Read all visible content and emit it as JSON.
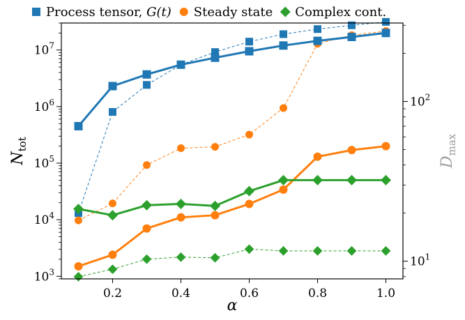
{
  "chart_data": {
    "type": "line",
    "x": [
      0.1,
      0.2,
      0.3,
      0.4,
      0.5,
      0.6,
      0.7,
      0.8,
      0.9,
      1.0
    ],
    "xlabel": "α",
    "ylabel": "N",
    "ylabel_sub": "tot",
    "ylabel_right": "D",
    "ylabel_right_sub": "max",
    "xlim": [
      0.05,
      1.05
    ],
    "ylim": [
      900,
      30000000
    ],
    "ylim_right": [
      7.75,
      310
    ],
    "yscale": "log",
    "yscale_right": "log",
    "xticks": [
      {
        "value": 0.2,
        "label": "0.2"
      },
      {
        "value": 0.4,
        "label": "0.4"
      },
      {
        "value": 0.6,
        "label": "0.6"
      },
      {
        "value": 0.8,
        "label": "0.8"
      },
      {
        "value": 1.0,
        "label": "1.0"
      }
    ],
    "yticks": [
      {
        "value": 1000,
        "base": "10",
        "exp": "3"
      },
      {
        "value": 10000,
        "base": "10",
        "exp": "4"
      },
      {
        "value": 100000,
        "base": "10",
        "exp": "5"
      },
      {
        "value": 1000000,
        "base": "10",
        "exp": "6"
      },
      {
        "value": 10000000,
        "base": "10",
        "exp": "7"
      }
    ],
    "yticks_right": [
      {
        "value": 10,
        "base": "10",
        "exp": "1"
      },
      {
        "value": 100,
        "base": "10",
        "exp": "2"
      }
    ],
    "legend": {
      "placement": "top",
      "entries": [
        {
          "label": "Process tensor, ",
          "math": "G(t)",
          "color": "#1f77b4",
          "marker": "square"
        },
        {
          "label": "Steady state",
          "math": "",
          "color": "#ff7f0e",
          "marker": "circle"
        },
        {
          "label": "Complex cont.",
          "math": "",
          "color": "#2ca02c",
          "marker": "diamond"
        }
      ]
    },
    "series": [
      {
        "color": "#1f77b4",
        "marker": "square",
        "style": "solid",
        "axis": "left",
        "values": [
          450000,
          2300000,
          3700000,
          5500000,
          7300000,
          9500000,
          12000000,
          14500000,
          17000000,
          20000000
        ]
      },
      {
        "color": "#1f77b4",
        "marker": "square",
        "style": "dashed",
        "axis": "right",
        "values": [
          20,
          86,
          127,
          170,
          204,
          237,
          264,
          284,
          300,
          315
        ]
      },
      {
        "color": "#ff7f0e",
        "marker": "circle",
        "style": "solid",
        "axis": "left",
        "values": [
          1500,
          2400,
          7000,
          11000,
          12000,
          19000,
          34000,
          130000,
          170000,
          200000
        ]
      },
      {
        "color": "#ff7f0e",
        "marker": "circle",
        "style": "dashed",
        "axis": "right",
        "values": [
          18,
          23,
          40,
          51,
          52,
          62,
          91,
          230,
          260,
          276
        ]
      },
      {
        "color": "#2ca02c",
        "marker": "diamond",
        "style": "solid",
        "axis": "left",
        "values": [
          15500,
          12000,
          18000,
          19000,
          17500,
          32000,
          50000,
          50000,
          50000,
          50000
        ]
      },
      {
        "color": "#2ca02c",
        "marker": "diamond",
        "style": "dashed",
        "axis": "right",
        "values": [
          8.0,
          8.9,
          10.3,
          10.6,
          10.5,
          11.9,
          11.6,
          11.6,
          11.6,
          11.6
        ]
      }
    ]
  }
}
